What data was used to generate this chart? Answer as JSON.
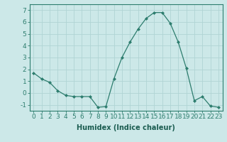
{
  "x": [
    0,
    1,
    2,
    3,
    4,
    5,
    6,
    7,
    8,
    9,
    10,
    11,
    12,
    13,
    14,
    15,
    16,
    17,
    18,
    19,
    20,
    21,
    22,
    23
  ],
  "y": [
    1.7,
    1.2,
    0.9,
    0.2,
    -0.2,
    -0.3,
    -0.3,
    -0.3,
    -1.2,
    -1.15,
    1.2,
    3.0,
    4.3,
    5.4,
    6.3,
    6.8,
    6.8,
    5.9,
    4.3,
    2.1,
    -0.65,
    -0.3,
    -1.1,
    -1.2
  ],
  "line_color": "#2d7d6e",
  "marker": "D",
  "marker_size": 2,
  "bg_color": "#cce8e8",
  "grid_color": "#b0d4d4",
  "xlabel": "Humidex (Indice chaleur)",
  "xlim": [
    -0.5,
    23.5
  ],
  "ylim": [
    -1.5,
    7.5
  ],
  "yticks": [
    -1,
    0,
    1,
    2,
    3,
    4,
    5,
    6,
    7
  ],
  "xticks": [
    0,
    1,
    2,
    3,
    4,
    5,
    6,
    7,
    8,
    9,
    10,
    11,
    12,
    13,
    14,
    15,
    16,
    17,
    18,
    19,
    20,
    21,
    22,
    23
  ],
  "tick_color": "#2d7d6e",
  "label_color": "#1a5c50",
  "label_fontsize": 7,
  "tick_fontsize": 6.5
}
